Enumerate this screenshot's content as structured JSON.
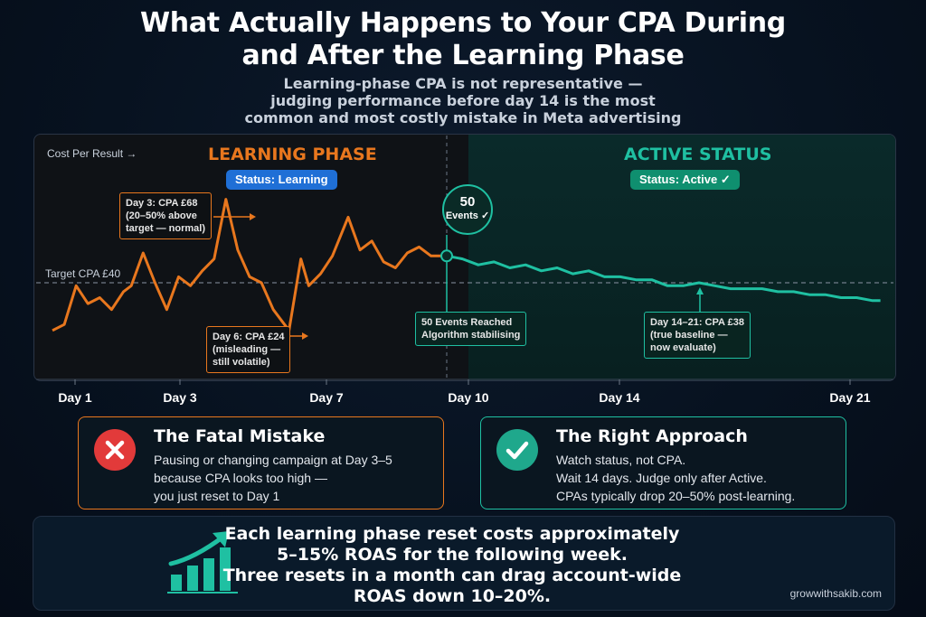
{
  "title_line1": "What Actually Happens to Your CPA During",
  "title_line2": "and After the Learning Phase",
  "subtitle_line1": "Learning-phase CPA is not representative —",
  "subtitle_line2": "judging performance before day 14 is the most",
  "subtitle_line3": "common and most costly mistake in Meta advertising",
  "chart": {
    "ylabel": "Cost Per Result →",
    "target_label": "Target CPA £40",
    "learning_label": "LEARNING PHASE",
    "learning_status": "Status: Learning",
    "active_label": "ACTIVE STATUS",
    "active_status": "Status: Active ✓",
    "events_number": "50",
    "events_text": "Events ✓",
    "annot_day3": [
      "Day 3: CPA £68",
      "(20–50% above",
      "target — normal)"
    ],
    "annot_day6": [
      "Day 6: CPA £24",
      "(misleading —",
      "still volatile)"
    ],
    "annot_50": [
      "50 Events Reached",
      "Algorithm stabilising"
    ],
    "annot_day14": [
      "Day 14–21: CPA £38",
      "(true baseline —",
      "now evaluate)"
    ],
    "xticks": [
      "Day 1",
      "Day 3",
      "Day 7",
      "Day 10",
      "Day 14",
      "Day 21"
    ]
  },
  "chart_data": {
    "type": "line",
    "ylabel": "Cost Per Result →",
    "xticks": [
      "Day 1",
      "Day 3",
      "Day 7",
      "Day 10",
      "Day 14",
      "Day 21"
    ],
    "target_cpa": 40,
    "series": [
      {
        "values_learning": [
          [
            0.0,
            24
          ],
          [
            0.3,
            26
          ],
          [
            0.6,
            39
          ],
          [
            0.9,
            33
          ],
          [
            1.2,
            35
          ],
          [
            1.5,
            31
          ],
          [
            1.8,
            37
          ],
          [
            2.0,
            39
          ],
          [
            2.3,
            50
          ],
          [
            2.6,
            40
          ],
          [
            2.9,
            31
          ],
          [
            3.2,
            42
          ],
          [
            3.5,
            39
          ],
          [
            3.8,
            44
          ],
          [
            4.1,
            48
          ],
          [
            4.4,
            68
          ],
          [
            4.7,
            51
          ],
          [
            5.0,
            42
          ],
          [
            5.3,
            40
          ],
          [
            5.6,
            31
          ],
          [
            6.0,
            24
          ],
          [
            6.3,
            48
          ],
          [
            6.5,
            39
          ],
          [
            6.8,
            43
          ],
          [
            7.1,
            49
          ],
          [
            7.5,
            62
          ],
          [
            7.8,
            51
          ],
          [
            8.1,
            54
          ],
          [
            8.4,
            47
          ],
          [
            8.7,
            45
          ],
          [
            9.0,
            50
          ],
          [
            9.3,
            52
          ],
          [
            9.6,
            49
          ],
          [
            10.0,
            49
          ]
        ],
        "values_active": [
          [
            10.0,
            49
          ],
          [
            10.4,
            48
          ],
          [
            10.8,
            46
          ],
          [
            11.2,
            47
          ],
          [
            11.6,
            45
          ],
          [
            12.0,
            46
          ],
          [
            12.4,
            44
          ],
          [
            12.8,
            45
          ],
          [
            13.2,
            43
          ],
          [
            13.6,
            44
          ],
          [
            14.0,
            42
          ],
          [
            14.4,
            42
          ],
          [
            14.8,
            41
          ],
          [
            15.2,
            41
          ],
          [
            15.6,
            39
          ],
          [
            16.0,
            39
          ],
          [
            16.4,
            40
          ],
          [
            16.8,
            39
          ],
          [
            17.2,
            38
          ],
          [
            17.6,
            38
          ],
          [
            18.0,
            38
          ],
          [
            18.4,
            37
          ],
          [
            18.8,
            37
          ],
          [
            19.2,
            36
          ],
          [
            19.6,
            36
          ],
          [
            20.0,
            35
          ],
          [
            20.4,
            35
          ],
          [
            20.8,
            34
          ],
          [
            21.0,
            34
          ]
        ]
      }
    ]
  },
  "mistake": {
    "title": "The Fatal Mistake",
    "lines": [
      "Pausing or changing campaign at Day 3–5",
      "because CPA looks too high —",
      "you just reset to Day 1"
    ]
  },
  "right": {
    "title": "The Right Approach",
    "lines": [
      "Watch status, not CPA.",
      "Wait 14 days. Judge only after Active.",
      "CPAs typically drop 20–50% post-learning."
    ]
  },
  "bottom": {
    "lines": [
      "Each learning phase reset costs approximately",
      "5–15% ROAS for the following week.",
      "Three resets in a month can drag account-wide",
      "ROAS down 10–20%."
    ]
  },
  "credit": "growwithsakib.com",
  "colors": {
    "orange": "#e8771e",
    "teal": "#1fc0a2",
    "blue": "#1f6fd6"
  }
}
